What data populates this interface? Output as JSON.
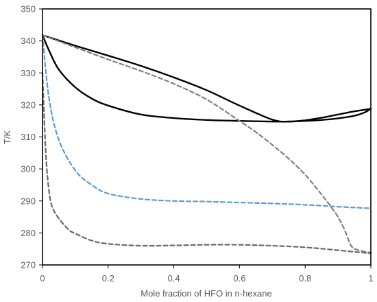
{
  "chart_data": {
    "type": "line",
    "title": "",
    "xlabel": "Mole fraction of HFO in n-hexane",
    "ylabel": "T/K",
    "xlim": [
      0,
      1
    ],
    "ylim": [
      270,
      350
    ],
    "xticks": [
      "0",
      "0.2",
      "0.4",
      "0.6",
      "0.8",
      "1"
    ],
    "yticks": [
      "270",
      "280",
      "290",
      "300",
      "310",
      "320",
      "330",
      "340",
      "350"
    ],
    "grid": false,
    "legend": "none",
    "series": [
      {
        "style": "solid",
        "color": "#000000",
        "x": [
          0,
          0.1,
          0.2,
          0.3,
          0.4,
          0.5,
          0.6,
          0.7,
          0.75,
          0.8,
          0.85,
          0.9,
          0.95,
          1.0
        ],
        "y": [
          341.8,
          338.5,
          335.4,
          332.2,
          328.6,
          324.6,
          319.8,
          315.4,
          314.8,
          315.2,
          316.0,
          317.0,
          318.0,
          318.8
        ]
      },
      {
        "style": "solid",
        "color": "#000000",
        "x": [
          0,
          0.02,
          0.05,
          0.1,
          0.15,
          0.2,
          0.3,
          0.4,
          0.5,
          0.6,
          0.7,
          0.75,
          0.8,
          0.85,
          0.9,
          0.95,
          0.98,
          1.0
        ],
        "y": [
          341.8,
          337.0,
          331.0,
          325.5,
          322.0,
          319.8,
          317.0,
          315.9,
          315.3,
          315.0,
          314.8,
          314.8,
          315.0,
          315.3,
          315.8,
          316.6,
          317.6,
          318.8
        ]
      },
      {
        "style": "dashed",
        "color": "#808080",
        "x": [
          0,
          0.1,
          0.2,
          0.3,
          0.4,
          0.5,
          0.6,
          0.65,
          0.7,
          0.75,
          0.8,
          0.85,
          0.88,
          0.9,
          0.92,
          0.94,
          0.96,
          1.0
        ],
        "y": [
          341.8,
          338.0,
          334.2,
          330.6,
          326.6,
          321.7,
          315.0,
          311.5,
          307.5,
          303.2,
          298.2,
          292.0,
          288.0,
          285.0,
          281.0,
          276.0,
          274.7,
          273.8
        ]
      },
      {
        "style": "dashed",
        "color": "#5B9BD5",
        "x": [
          0,
          0.02,
          0.05,
          0.1,
          0.15,
          0.2,
          0.3,
          0.4,
          0.5,
          0.6,
          0.7,
          0.8,
          0.9,
          1.0
        ],
        "y": [
          341.8,
          322.0,
          309.0,
          299.5,
          295.0,
          292.3,
          290.6,
          290.0,
          289.8,
          289.5,
          289.2,
          288.8,
          288.2,
          287.7
        ]
      },
      {
        "style": "dashed",
        "color": "#696969",
        "x": [
          0,
          0.01,
          0.02,
          0.03,
          0.05,
          0.08,
          0.1,
          0.15,
          0.2,
          0.3,
          0.4,
          0.5,
          0.6,
          0.7,
          0.8,
          0.9,
          1.0
        ],
        "y": [
          330.0,
          305.0,
          293.0,
          288.0,
          284.5,
          281.0,
          279.8,
          277.6,
          276.6,
          276.0,
          276.1,
          276.3,
          276.3,
          276.0,
          275.5,
          274.6,
          273.6
        ]
      }
    ]
  }
}
